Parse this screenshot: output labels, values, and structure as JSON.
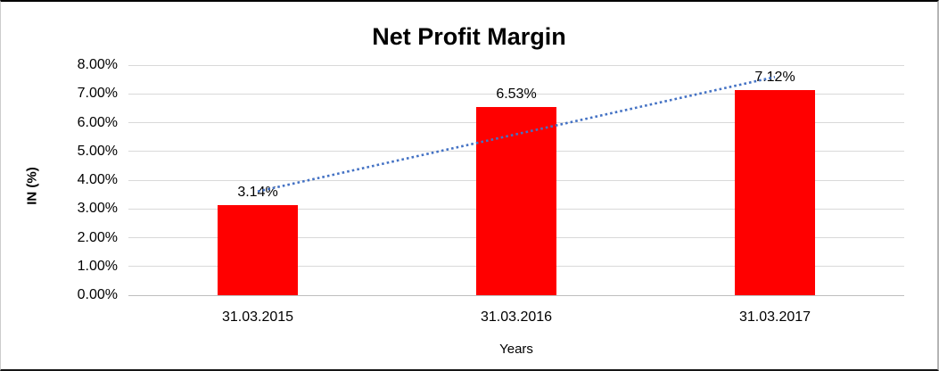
{
  "chart_data": {
    "type": "bar",
    "title": "Net Profit Margin",
    "categories": [
      "31.03.2015",
      "31.03.2016",
      "31.03.2017"
    ],
    "values": [
      3.14,
      6.53,
      7.12
    ],
    "data_labels": [
      "3.14%",
      "6.53%",
      "7.12%"
    ],
    "xlabel": "Years",
    "ylabel": "IN (%)",
    "ylim": [
      0,
      8
    ],
    "ytick_step": 1,
    "ytick_labels": [
      "0.00%",
      "1.00%",
      "2.00%",
      "3.00%",
      "4.00%",
      "5.00%",
      "6.00%",
      "7.00%",
      "8.00%"
    ],
    "grid": true,
    "legend": "none",
    "bar_color": "#FF0000",
    "gridline_color": "#D9D9D9",
    "axis_line_color": "#BFBFBF",
    "trendline": {
      "type": "linear",
      "style": "dotted",
      "color": "#4472C4"
    }
  }
}
